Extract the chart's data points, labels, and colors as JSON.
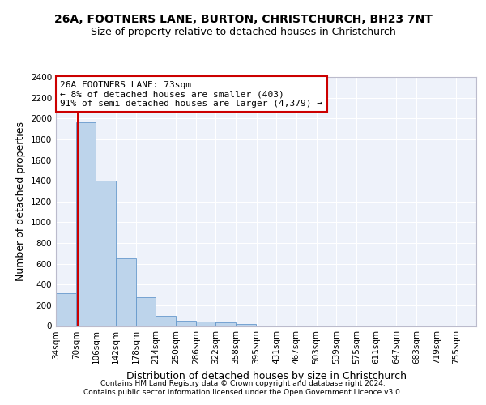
{
  "title_line1": "26A, FOOTNERS LANE, BURTON, CHRISTCHURCH, BH23 7NT",
  "title_line2": "Size of property relative to detached houses in Christchurch",
  "xlabel": "Distribution of detached houses by size in Christchurch",
  "ylabel": "Number of detached properties",
  "footnote1": "Contains HM Land Registry data © Crown copyright and database right 2024.",
  "footnote2": "Contains public sector information licensed under the Open Government Licence v3.0.",
  "bin_labels": [
    "34sqm",
    "70sqm",
    "106sqm",
    "142sqm",
    "178sqm",
    "214sqm",
    "250sqm",
    "286sqm",
    "322sqm",
    "358sqm",
    "395sqm",
    "431sqm",
    "467sqm",
    "503sqm",
    "539sqm",
    "575sqm",
    "611sqm",
    "647sqm",
    "683sqm",
    "719sqm",
    "755sqm"
  ],
  "bin_edges": [
    34,
    70,
    106,
    142,
    178,
    214,
    250,
    286,
    322,
    358,
    395,
    431,
    467,
    503,
    539,
    575,
    611,
    647,
    683,
    719,
    755
  ],
  "bar_heights": [
    320,
    1960,
    1400,
    650,
    275,
    100,
    50,
    45,
    35,
    20,
    5,
    2,
    1,
    0,
    0,
    0,
    0,
    0,
    0,
    0
  ],
  "bar_color": "#bdd4eb",
  "bar_edgecolor": "#6699cc",
  "property_sqm": 73,
  "red_line_color": "#cc0000",
  "annotation_line1": "26A FOOTNERS LANE: 73sqm",
  "annotation_line2": "← 8% of detached houses are smaller (403)",
  "annotation_line3": "91% of semi-detached houses are larger (4,379) →",
  "annotation_box_color": "#cc0000",
  "ylim": [
    0,
    2400
  ],
  "yticks": [
    0,
    200,
    400,
    600,
    800,
    1000,
    1200,
    1400,
    1600,
    1800,
    2000,
    2200,
    2400
  ],
  "background_color": "#eef2fa",
  "grid_color": "#ffffff",
  "title_fontsize": 10,
  "subtitle_fontsize": 9,
  "axis_label_fontsize": 9,
  "tick_fontsize": 7.5,
  "footnote_fontsize": 6.5
}
